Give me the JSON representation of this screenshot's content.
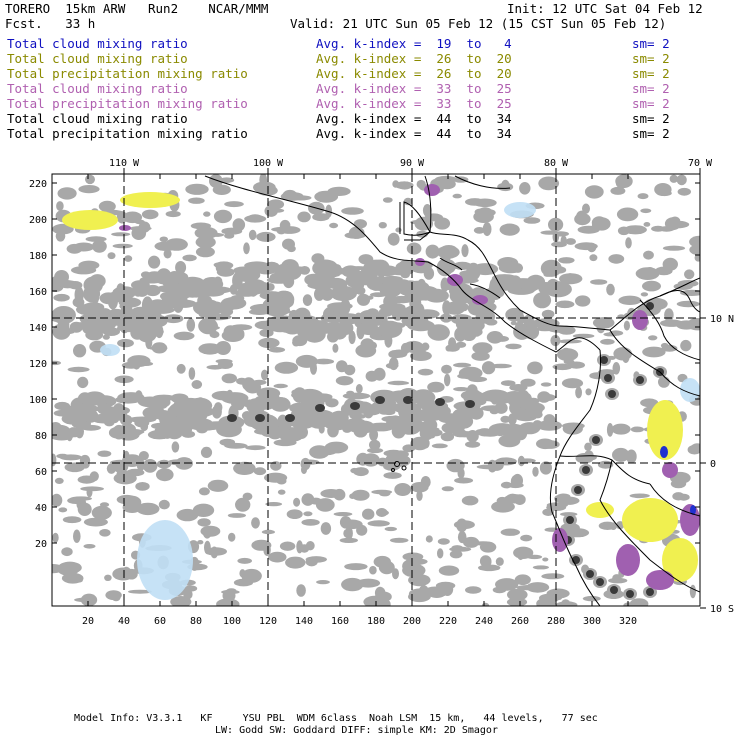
{
  "header": {
    "title_left": "TORERO  15km ARW   Run2    NCAR/MMM",
    "init": "Init: 12 UTC Sat 04 Feb 12",
    "fcst": "Fcst.   33 h",
    "valid": "Valid: 21 UTC Sun 05 Feb 12 (15 CST Sun 05 Feb 12)"
  },
  "legend": [
    {
      "field": "Total cloud mixing ratio",
      "kindex": "Avg. k-index =  19  to   4",
      "sm": "sm= 2",
      "color": "#1010c0"
    },
    {
      "field": "Total cloud mixing ratio",
      "kindex": "Avg. k-index =  26  to  20",
      "sm": "sm= 2",
      "color": "#8a8a00"
    },
    {
      "field": "Total precipitation mixing ratio",
      "kindex": "Avg. k-index =  26  to  20",
      "sm": "sm= 2",
      "color": "#8a8a00"
    },
    {
      "field": "Total cloud mixing ratio",
      "kindex": "Avg. k-index =  33  to  25",
      "sm": "sm= 2",
      "color": "#b060b0"
    },
    {
      "field": "Total precipitation mixing ratio",
      "kindex": "Avg. k-index =  33  to  25",
      "sm": "sm= 2",
      "color": "#b060b0"
    },
    {
      "field": "Total cloud mixing ratio",
      "kindex": "Avg. k-index =  44  to  34",
      "sm": "sm= 2",
      "color": "#000000"
    },
    {
      "field": "Total precipitation mixing ratio",
      "kindex": "Avg. k-index =  44  to  34",
      "sm": "sm= 2",
      "color": "#000000"
    }
  ],
  "map": {
    "lon_labels": [
      "110 W",
      "100 W",
      "90 W",
      "80 W",
      "70 W"
    ],
    "lat_labels": [
      "10 N",
      "0",
      "10 S"
    ],
    "y_ticks": [
      "220",
      "200",
      "180",
      "160",
      "140",
      "120",
      "100",
      "80",
      "60",
      "40",
      "20"
    ],
    "x_ticks": [
      "20",
      "40",
      "60",
      "80",
      "100",
      "120",
      "140",
      "160",
      "180",
      "200",
      "220",
      "240",
      "260",
      "280",
      "300",
      "320"
    ],
    "colors": {
      "gray": "#a8a8a8",
      "dark": "#3a3a3a",
      "yellow": "#f0f050",
      "purple": "#a060b0",
      "lightblue": "#c0dff5",
      "blue": "#2030d0"
    }
  },
  "footer": {
    "line1": "Model Info: V3.3.1   KF     YSU PBL  WDM 6class  Noah LSM  15 km,   44 levels,   77 sec",
    "line2": "LW: Godd SW: Goddard DIFF: simple KM: 2D Smagor"
  }
}
